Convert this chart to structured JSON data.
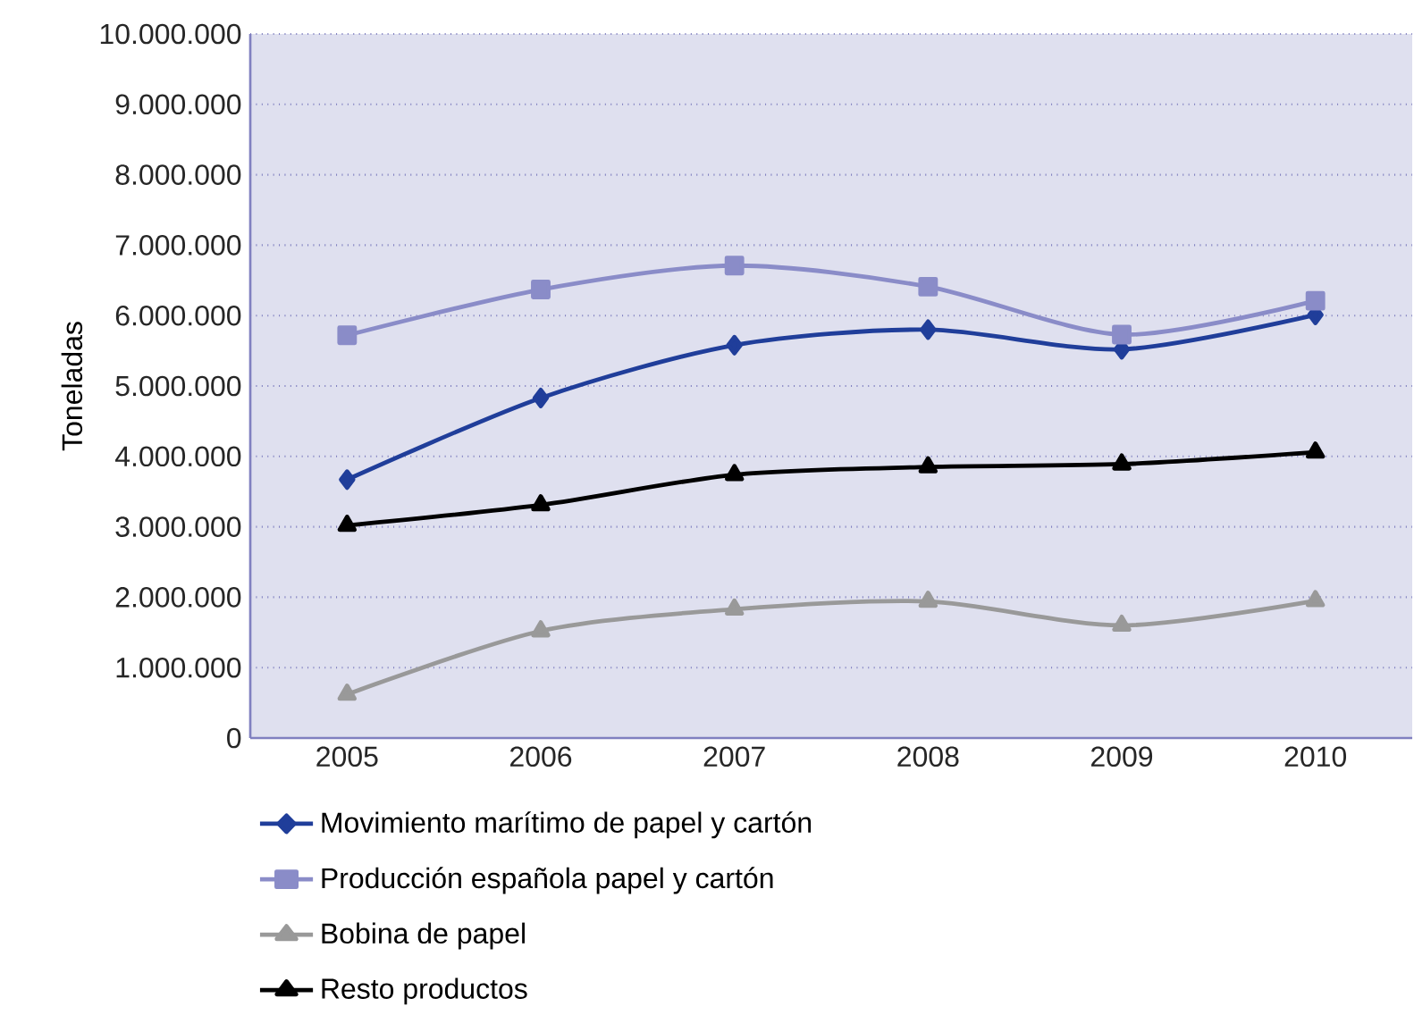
{
  "chart_data": {
    "type": "line",
    "ylabel": "Toneladas",
    "categories": [
      "2005",
      "2006",
      "2007",
      "2008",
      "2009",
      "2010"
    ],
    "series": [
      {
        "name": "Movimiento marítimo de papel y cartón",
        "color": "#203e9a",
        "marker": "diamond",
        "values": [
          3670000,
          4830000,
          5580000,
          5800000,
          5520000,
          6010000
        ]
      },
      {
        "name": "Producción española papel y cartón",
        "color": "#8a8cc8",
        "marker": "square",
        "values": [
          5720000,
          6370000,
          6710000,
          6410000,
          5730000,
          6210000
        ]
      },
      {
        "name": "Bobina de papel",
        "color": "#999999",
        "marker": "triangle",
        "values": [
          620000,
          1520000,
          1830000,
          1940000,
          1600000,
          1950000
        ]
      },
      {
        "name": "Resto productos",
        "color": "#000000",
        "marker": "triangle",
        "values": [
          3020000,
          3310000,
          3740000,
          3850000,
          3890000,
          4060000
        ]
      }
    ],
    "ylim": [
      0,
      10000000
    ],
    "yticks": [
      0,
      {
        "value": 1000000,
        "label": "1.000.000"
      },
      {
        "value": 2000000,
        "label": "2.000.000"
      },
      {
        "value": 3000000,
        "label": "3.000.000"
      },
      {
        "value": 4000000,
        "label": "4.000.000"
      },
      {
        "value": 5000000,
        "label": "5.000.000"
      },
      {
        "value": 6000000,
        "label": "6.000.000"
      },
      {
        "value": 7000000,
        "label": "7.000.000"
      },
      {
        "value": 8000000,
        "label": "8.000.000"
      },
      {
        "value": 9000000,
        "label": "9.000.000"
      },
      {
        "value": 10000000,
        "label": "10.000.000"
      }
    ],
    "grid": "y",
    "legend": "bottom",
    "line_style": "solid"
  }
}
